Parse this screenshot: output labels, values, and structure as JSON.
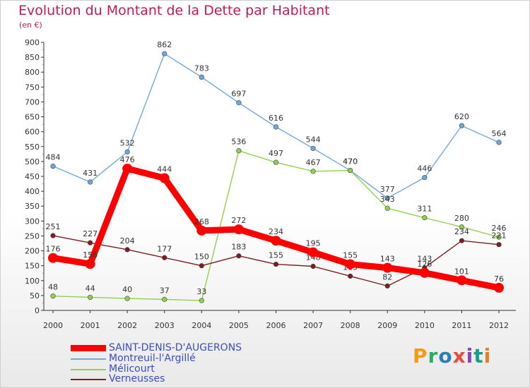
{
  "header": {
    "title": "Evolution du Montant de la Dette par Habitant",
    "subtitle": "(en €)"
  },
  "logo": {
    "text": "Proxiti",
    "colors": [
      "#f39c12",
      "#27ae60",
      "#2980b9",
      "#e74c3c",
      "#8e44ad",
      "#16a085",
      "#e67e22"
    ]
  },
  "chart_data": {
    "type": "line",
    "x": [
      "2000",
      "2001",
      "2002",
      "2003",
      "2004",
      "2005",
      "2006",
      "2007",
      "2008",
      "2009",
      "2010",
      "2011",
      "2012"
    ],
    "ylim": [
      0,
      900
    ],
    "yticks": [
      0,
      50,
      100,
      150,
      200,
      250,
      300,
      350,
      400,
      450,
      500,
      550,
      600,
      650,
      700,
      750,
      800,
      850,
      900
    ],
    "grid": false,
    "legend_position": "bottom-left",
    "series": [
      {
        "name": "SAINT-DENIS-D'AUGERONS",
        "color": "#ff0000",
        "emphasis": true,
        "values": [
          176,
          156,
          476,
          444,
          268,
          272,
          234,
          195,
          155,
          143,
          126,
          101,
          76
        ],
        "labels": [
          "176",
          "156",
          "476",
          "444",
          "268",
          "272",
          "234",
          "195",
          "155",
          "143",
          "126",
          "101",
          "76"
        ]
      },
      {
        "name": "Montreuil-l'Argillé",
        "color": "#6fa8dc",
        "values": [
          484,
          431,
          532,
          862,
          783,
          697,
          616,
          544,
          470,
          377,
          446,
          620,
          564
        ],
        "labels": [
          "484",
          "431",
          "532",
          "862",
          "783",
          "697",
          "616",
          "544",
          "470",
          "377",
          "446",
          "620",
          "564"
        ]
      },
      {
        "name": "Mélicourt",
        "color": "#8fd14f",
        "values": [
          48,
          44,
          40,
          37,
          33,
          536,
          497,
          467,
          470,
          343,
          311,
          280,
          246
        ],
        "labels": [
          "48",
          "44",
          "40",
          "37",
          "33",
          "536",
          "497",
          "467",
          "470",
          "343",
          "311",
          "280",
          "246"
        ]
      },
      {
        "name": "Verneusses",
        "color": "#7b1f1f",
        "values": [
          251,
          227,
          204,
          177,
          150,
          183,
          155,
          148,
          115,
          82,
          143,
          234,
          221
        ],
        "labels": [
          "251",
          "227",
          "204",
          "177",
          "150",
          "183",
          "155",
          "148",
          "115",
          "82",
          "143",
          "234",
          "221"
        ]
      }
    ]
  }
}
